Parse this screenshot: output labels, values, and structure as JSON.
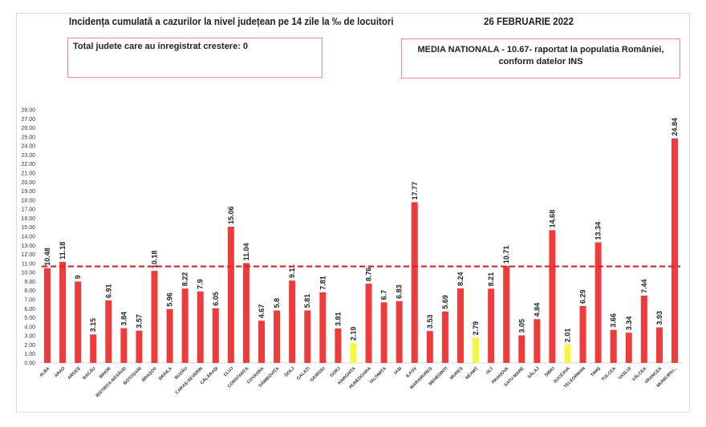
{
  "chart_data": {
    "type": "bar",
    "title": "Incidența cumulată a cazurilor la nivel județean pe 14 zile la ‰ de locuitori",
    "date": "26 FEBRUARIE 2022",
    "total_box": "Total judete care au inregistrat crestere: 0",
    "media_box_line1": "MEDIA NATIONALA - 10.67-  raportat la populatia României,",
    "media_box_line2": "conform datelor INS",
    "national_average": 10.67,
    "ylim": [
      0,
      28
    ],
    "ytick_step": 1,
    "categories": [
      "ALBA",
      "ARAD",
      "ARGEȘ",
      "BACĂU",
      "BIHOR",
      "BISTRIȚA-NĂSĂUD",
      "BOTOȘANI",
      "BRAȘOV",
      "BRĂILA",
      "BUZĂU",
      "CARAȘ-SEVERIN",
      "CĂLĂRAȘI",
      "CLUJ",
      "CONSTANȚA",
      "COVASNA",
      "DÂMBOVIȚA",
      "DOLJ",
      "GALAȚI",
      "GIURGIU",
      "GORJ",
      "HARGHITA",
      "HUNEDOARA",
      "IALOMIȚA",
      "IAȘI",
      "ILFOV",
      "MARAMUREȘ",
      "MEHEDINȚI",
      "MUREȘ",
      "NEAMȚ",
      "OLT",
      "PRAHOVA",
      "SATU MARE",
      "SĂLAJ",
      "SIBIU",
      "SUCEAVA",
      "TELEORMAN",
      "TIMIȘ",
      "TULCEA",
      "VASLUI",
      "VÂLCEA",
      "VRANCEA",
      "MUNICIPIU..."
    ],
    "values": [
      10.48,
      11.18,
      9,
      3.15,
      6.91,
      3.84,
      3.57,
      10.18,
      5.96,
      8.22,
      7.9,
      6.05,
      15.06,
      11.04,
      4.67,
      5.8,
      9.11,
      5.81,
      7.81,
      3.81,
      2.19,
      8.76,
      6.7,
      6.83,
      17.77,
      3.53,
      5.69,
      8.24,
      2.79,
      8.21,
      10.71,
      3.05,
      4.84,
      14.68,
      2.01,
      6.29,
      13.34,
      3.66,
      3.34,
      7.44,
      3.93,
      24.84
    ],
    "value_labels": [
      "10.48",
      "11.18",
      "9",
      "3.15",
      "6.91",
      "3.84",
      "3.57",
      "10.18",
      "5.96",
      "8.22",
      "7.9",
      "6.05",
      "15.06",
      "11.04",
      "4.67",
      "5.8",
      "9.11",
      "5.81",
      "7.81",
      "3.81",
      "2.19",
      "8.76",
      "6.7",
      "6.83",
      "17.77",
      "3.53",
      "5.69",
      "8.24",
      "2.79",
      "8.21",
      "10.71",
      "3.05",
      "4.84",
      "14.68",
      "2.01",
      "6.29",
      "13.34",
      "3.66",
      "3.34",
      "7.44",
      "3.93",
      "24.84"
    ],
    "low_threshold": 3,
    "colors": {
      "bar": "#ee3b3b",
      "low": "#f5f542",
      "average_line": "#e02020",
      "box_border": "#e88888"
    }
  }
}
